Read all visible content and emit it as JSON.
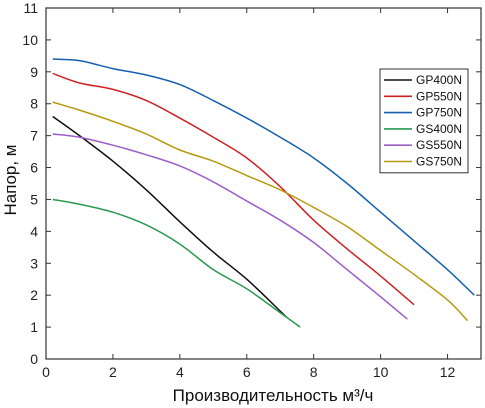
{
  "chart_data": {
    "type": "line",
    "xlabel": "Производительность м³/ч",
    "ylabel": "Напор, м",
    "xlim": [
      0,
      13
    ],
    "ylim": [
      0,
      11
    ],
    "x_ticks": [
      0,
      2,
      4,
      6,
      8,
      10,
      12
    ],
    "y_ticks": [
      0,
      1,
      2,
      3,
      4,
      5,
      6,
      7,
      8,
      9,
      10,
      11
    ],
    "legend_position": "top-right",
    "series": [
      {
        "name": "GP400N",
        "color": "#111111",
        "x": [
          0.2,
          1,
          2,
          3,
          4,
          5,
          6,
          7,
          7.2
        ],
        "y": [
          7.6,
          7.0,
          6.2,
          5.3,
          4.3,
          3.35,
          2.5,
          1.5,
          1.3
        ]
      },
      {
        "name": "GP550N",
        "color": "#cc2222",
        "x": [
          0.2,
          1,
          2,
          3,
          4,
          5,
          6,
          7,
          8,
          9,
          10,
          11
        ],
        "y": [
          8.95,
          8.65,
          8.45,
          8.1,
          7.55,
          6.95,
          6.3,
          5.4,
          4.35,
          3.45,
          2.6,
          1.7
        ]
      },
      {
        "name": "GP750N",
        "color": "#1560b0",
        "x": [
          0.2,
          1,
          2,
          3,
          4,
          5,
          6,
          7,
          8,
          9,
          10,
          11,
          12,
          12.8
        ],
        "y": [
          9.4,
          9.35,
          9.1,
          8.9,
          8.6,
          8.1,
          7.55,
          6.95,
          6.3,
          5.5,
          4.6,
          3.7,
          2.8,
          2.0
        ]
      },
      {
        "name": "GS400N",
        "color": "#2a9a50",
        "x": [
          0.2,
          1,
          2,
          3,
          4,
          5,
          6,
          7,
          7.6
        ],
        "y": [
          5.0,
          4.85,
          4.6,
          4.2,
          3.6,
          2.8,
          2.2,
          1.45,
          1.0
        ]
      },
      {
        "name": "GS550N",
        "color": "#9b5fc8",
        "x": [
          0.2,
          1,
          2,
          3,
          4,
          5,
          6,
          7,
          8,
          9,
          10,
          10.8
        ],
        "y": [
          7.05,
          6.95,
          6.7,
          6.4,
          6.05,
          5.55,
          4.95,
          4.35,
          3.65,
          2.8,
          1.95,
          1.25
        ]
      },
      {
        "name": "GS750N",
        "color": "#b59a10",
        "x": [
          0.2,
          1,
          2,
          3,
          4,
          5,
          6,
          7,
          8,
          9,
          10,
          11,
          12,
          12.6
        ],
        "y": [
          8.05,
          7.8,
          7.45,
          7.05,
          6.55,
          6.2,
          5.75,
          5.3,
          4.75,
          4.15,
          3.4,
          2.65,
          1.85,
          1.2
        ]
      }
    ]
  }
}
